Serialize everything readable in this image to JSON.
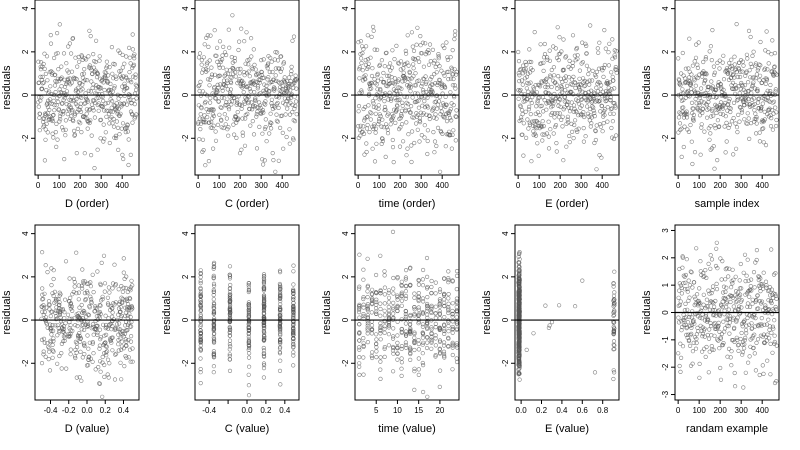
{
  "figure": {
    "ylabel": "residuals"
  },
  "chart_data": [
    {
      "type": "scatter",
      "xlabel": "D (order)",
      "ylabel": "residuals",
      "xlim": [
        -15,
        480
      ],
      "ylim": [
        -3.7,
        4.4
      ],
      "xticks": [
        0,
        100,
        200,
        300,
        400
      ],
      "yticks": [
        -2,
        0,
        2,
        4
      ],
      "reference_line_y": 0,
      "grid": false,
      "x_kind": "index",
      "n": 470,
      "seed": 11,
      "spread": 1.2
    },
    {
      "type": "scatter",
      "xlabel": "C (order)",
      "ylabel": "residuals",
      "xlim": [
        -15,
        480
      ],
      "ylim": [
        -3.7,
        4.4
      ],
      "xticks": [
        0,
        100,
        200,
        300,
        400
      ],
      "yticks": [
        -2,
        0,
        2,
        4
      ],
      "reference_line_y": 0,
      "grid": false,
      "x_kind": "index",
      "n": 470,
      "seed": 23,
      "spread": 1.2
    },
    {
      "type": "scatter",
      "xlabel": "time (order)",
      "ylabel": "residuals",
      "xlim": [
        -15,
        480
      ],
      "ylim": [
        -3.7,
        4.4
      ],
      "xticks": [
        0,
        100,
        200,
        300,
        400
      ],
      "yticks": [
        -2,
        0,
        2,
        4
      ],
      "reference_line_y": 0,
      "grid": false,
      "x_kind": "index",
      "n": 470,
      "seed": 37,
      "spread": 1.3
    },
    {
      "type": "scatter",
      "xlabel": "E (order)",
      "ylabel": "residuals",
      "xlim": [
        -15,
        480
      ],
      "ylim": [
        -3.7,
        4.4
      ],
      "xticks": [
        0,
        100,
        200,
        300,
        400
      ],
      "yticks": [
        -2,
        0,
        2,
        4
      ],
      "reference_line_y": 0,
      "grid": false,
      "x_kind": "index",
      "n": 470,
      "seed": 41,
      "spread": 1.2
    },
    {
      "type": "scatter",
      "xlabel": "sample index",
      "ylabel": "residuals",
      "xlim": [
        -15,
        480
      ],
      "ylim": [
        -3.7,
        4.4
      ],
      "xticks": [
        0,
        100,
        200,
        300,
        400
      ],
      "yticks": [
        -2,
        0,
        2,
        4
      ],
      "reference_line_y": 0,
      "grid": false,
      "x_kind": "index",
      "n": 470,
      "seed": 53,
      "spread": 1.2
    },
    {
      "type": "scatter",
      "xlabel": "D (value)",
      "ylabel": "residuals",
      "xlim": [
        -0.57,
        0.57
      ],
      "ylim": [
        -3.7,
        4.4
      ],
      "xticks": [
        -0.4,
        -0.2,
        0.0,
        0.2,
        0.4
      ],
      "xticklabels": [
        "-0.4",
        "-0.2",
        "0.0",
        "0.2",
        "0.4"
      ],
      "yticks": [
        -2,
        0,
        2,
        4
      ],
      "reference_line_y": 0,
      "grid": false,
      "x_kind": "continuous",
      "x_range": [
        -0.5,
        0.5
      ],
      "n": 470,
      "seed": 61,
      "spread": 1.2
    },
    {
      "type": "scatter",
      "xlabel": "C (value)",
      "ylabel": "residuals",
      "xlim": [
        -0.55,
        0.55
      ],
      "ylim": [
        -3.7,
        4.4
      ],
      "xticks": [
        -0.4,
        -0.2,
        0.0,
        0.2,
        0.4
      ],
      "xticklabels": [
        "-0.4",
        "",
        "0.0",
        "0.2",
        "0.4"
      ],
      "yticks": [
        -2,
        0,
        2,
        4
      ],
      "reference_line_y": 0,
      "grid": false,
      "x_kind": "discrete",
      "x_levels": [
        -0.49,
        -0.35,
        -0.18,
        0.02,
        0.18,
        0.35,
        0.49
      ],
      "n": 470,
      "seed": 71,
      "spread": 1.1
    },
    {
      "type": "scatter",
      "xlabel": "time (value)",
      "ylabel": "residuals",
      "xlim": [
        0,
        24.5
      ],
      "ylim": [
        -3.7,
        4.4
      ],
      "xticks": [
        5,
        10,
        15,
        20
      ],
      "yticks": [
        -2,
        0,
        2,
        4
      ],
      "reference_line_y": 0,
      "grid": false,
      "x_kind": "discrete",
      "x_levels": [
        1,
        2,
        3,
        4,
        5,
        6,
        7,
        8,
        9,
        10,
        11,
        12,
        13,
        14,
        15,
        16,
        17,
        18,
        19,
        20,
        21,
        22,
        23,
        24
      ],
      "n": 470,
      "seed": 83,
      "spread": 1.2
    },
    {
      "type": "scatter",
      "xlabel": "E (value)",
      "ylabel": "residuals",
      "xlim": [
        -0.06,
        0.96
      ],
      "ylim": [
        -3.7,
        4.4
      ],
      "xticks": [
        0.0,
        0.2,
        0.4,
        0.6,
        0.8
      ],
      "xticklabels": [
        "0.0",
        "0.2",
        "0.4",
        "0.6",
        "0.8"
      ],
      "yticks": [
        -2,
        0,
        2,
        4
      ],
      "reference_line_y": 0,
      "grid": false,
      "x_kind": "clustered",
      "x_clusters": [
        {
          "center": -0.02,
          "width": 0.012,
          "weight": 0.9
        },
        {
          "center": 0.91,
          "width": 0.01,
          "weight": 0.08
        }
      ],
      "n": 470,
      "seed": 97,
      "spread": 1.3
    },
    {
      "type": "scatter",
      "xlabel": "randam example",
      "ylabel": "residuals",
      "xlim": [
        -15,
        480
      ],
      "ylim": [
        -3.2,
        3.2
      ],
      "xticks": [
        0,
        100,
        200,
        300,
        400
      ],
      "yticks": [
        -3,
        -2,
        -1,
        0,
        1,
        2,
        3
      ],
      "reference_line_y": 0,
      "grid": false,
      "x_kind": "index",
      "n": 470,
      "seed": 101,
      "spread": 1.0
    }
  ]
}
